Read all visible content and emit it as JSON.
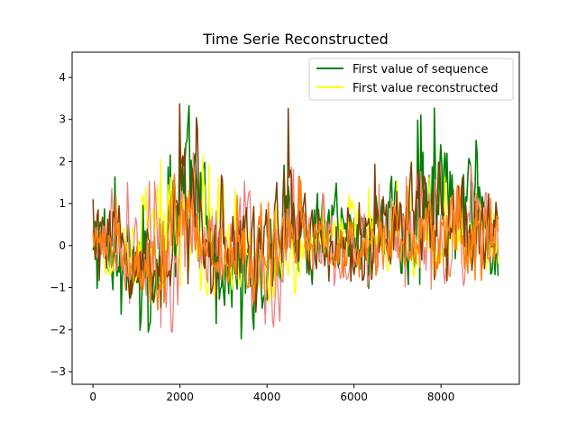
{
  "chart_data": {
    "type": "line",
    "title": "Time Serie Reconstructed",
    "xlabel": "",
    "ylabel": "",
    "xlim": [
      -480,
      9800
    ],
    "ylim": [
      -3.3,
      4.6
    ],
    "x_ticks": [
      0,
      2000,
      4000,
      6000,
      8000
    ],
    "x_tick_labels": [
      "0",
      "2000",
      "4000",
      "6000",
      "8000"
    ],
    "y_ticks": [
      -3,
      -2,
      -1,
      0,
      1,
      2,
      3,
      4
    ],
    "y_tick_labels": [
      "−3",
      "−2",
      "−1",
      "0",
      "1",
      "2",
      "3",
      "4"
    ],
    "grid": false,
    "legend_position": "upper right",
    "n_points": 9330,
    "series": [
      {
        "name": "First value of sequence",
        "color": "#008000",
        "in_legend": true,
        "approx_envelope": {
          "x": [
            0,
            100,
            300,
            600,
            900,
            1200,
            1500,
            1700,
            1900,
            2100,
            2300,
            2500,
            2700,
            2900,
            3100,
            3300,
            3600,
            3900,
            4100,
            4300,
            4400,
            4600,
            4900,
            5200,
            5600,
            6000,
            6400,
            6800,
            7200,
            7600,
            8000,
            8400,
            8800,
            9100,
            9300
          ],
          "upper": [
            0.4,
            2.3,
            1.9,
            1.6,
            1.1,
            1.0,
            1.3,
            3.8,
            4.2,
            3.8,
            4.2,
            3.5,
            2.5,
            1.7,
            1.4,
            1.8,
            1.6,
            1.5,
            0.6,
            3.0,
            4.2,
            3.0,
            1.4,
            2.2,
            2.3,
            2.0,
            2.3,
            2.2,
            2.6,
            3.3,
            3.4,
            2.8,
            2.6,
            1.8,
            1.3
          ],
          "lower": [
            -0.7,
            -1.1,
            -1.3,
            -1.6,
            -2.2,
            -2.0,
            -2.5,
            -0.8,
            -1.3,
            -0.8,
            -1.5,
            -1.5,
            -1.6,
            -2.1,
            -2.3,
            -2.3,
            -2.3,
            -2.0,
            -2.3,
            -1.0,
            -0.8,
            -1.3,
            -1.2,
            -1.1,
            -1.0,
            -1.0,
            -1.1,
            -1.0,
            -1.0,
            -1.0,
            -1.1,
            -1.1,
            -1.2,
            -1.2,
            -1.2
          ]
        }
      },
      {
        "name": "First value reconstructed",
        "color": "#ffff00",
        "in_legend": true,
        "approx_envelope": {
          "x": [
            0,
            1000,
            2000,
            3000,
            4000,
            5000,
            6000,
            7000,
            8000,
            9300
          ],
          "upper": [
            0.8,
            1.0,
            3.0,
            1.5,
            1.0,
            1.0,
            1.3,
            1.6,
            1.7,
            1.2
          ],
          "lower": [
            -0.8,
            -1.2,
            -1.0,
            -1.3,
            -1.7,
            -0.9,
            -0.8,
            -0.8,
            -0.8,
            -0.9
          ]
        }
      },
      {
        "name": "",
        "color": "#f08080",
        "in_legend": false,
        "approx_envelope": {
          "x": [
            0,
            500,
            1000,
            1500,
            2000,
            2500,
            3000,
            3500,
            4000,
            4200,
            4500,
            5000,
            5500,
            6000,
            6500,
            7000,
            7500,
            8000,
            8500,
            9000,
            9300
          ],
          "upper": [
            0.8,
            1.5,
            1.6,
            1.6,
            2.4,
            2.2,
            1.6,
            1.6,
            1.5,
            1.6,
            2.0,
            1.4,
            1.2,
            1.1,
            1.5,
            1.6,
            1.8,
            2.0,
            2.0,
            2.0,
            1.9
          ],
          "lower": [
            -0.5,
            -1.3,
            -1.5,
            -2.0,
            -2.2,
            -1.0,
            -1.7,
            -1.3,
            -2.0,
            -3.0,
            -1.0,
            -1.0,
            -1.0,
            -0.9,
            -1.1,
            -1.0,
            -1.1,
            -1.1,
            -1.2,
            -1.4,
            -1.3
          ]
        }
      },
      {
        "name": "",
        "color": "#7f3f00",
        "in_legend": false,
        "approx_envelope": {
          "x": [
            0,
            500,
            1000,
            1500,
            2000,
            2500,
            3000,
            3500,
            4000,
            4500,
            5000,
            6000,
            7000,
            8000,
            9300
          ],
          "upper": [
            2.1,
            1.9,
            1.2,
            1.0,
            3.5,
            3.0,
            1.6,
            1.5,
            1.2,
            3.4,
            1.7,
            1.8,
            2.2,
            2.8,
            1.6
          ],
          "lower": [
            -0.8,
            -1.1,
            -1.4,
            -1.6,
            -1.0,
            -1.0,
            -1.5,
            -1.5,
            -1.8,
            -0.8,
            -0.9,
            -0.9,
            -0.8,
            -0.9,
            -1.0
          ]
        }
      },
      {
        "name": "",
        "color": "#ff7f0e",
        "in_legend": false,
        "approx_envelope": {
          "x": [
            0,
            500,
            1000,
            1500,
            2000,
            2500,
            3000,
            3500,
            4000,
            4500,
            5000,
            6000,
            7000,
            8000,
            9300
          ],
          "upper": [
            0.7,
            1.2,
            1.1,
            1.2,
            2.6,
            1.9,
            1.3,
            1.2,
            1.0,
            2.2,
            1.1,
            1.2,
            1.4,
            1.6,
            1.1
          ],
          "lower": [
            -0.7,
            -1.0,
            -1.2,
            -1.6,
            -0.9,
            -0.9,
            -1.2,
            -1.2,
            -1.6,
            -0.7,
            -0.8,
            -0.8,
            -0.7,
            -0.8,
            -0.9
          ]
        }
      }
    ]
  }
}
